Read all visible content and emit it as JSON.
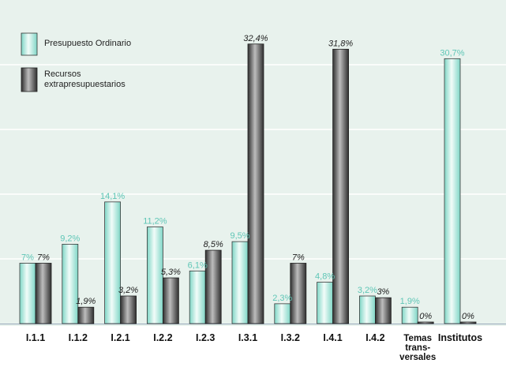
{
  "chart_data": {
    "type": "bar",
    "categories": [
      "I.1.1",
      "I.1.2",
      "I.2.1",
      "I.2.2",
      "I.2.3",
      "I.3.1",
      "I.3.2",
      "I.4.1",
      "I.4.2",
      "Temas trans- versales",
      "Institutos"
    ],
    "category_lines": [
      [
        "I.1.1"
      ],
      [
        "I.1.2"
      ],
      [
        "I.2.1"
      ],
      [
        "I.2.2"
      ],
      [
        "I.2.3"
      ],
      [
        "I.3.1"
      ],
      [
        "I.3.2"
      ],
      [
        "I.4.1"
      ],
      [
        "I.4.2"
      ],
      [
        "Temas",
        "trans-",
        "versales"
      ],
      [
        "Institutos"
      ]
    ],
    "series": [
      {
        "name": "Presupuesto Ordinario",
        "values": [
          7,
          9.2,
          14.1,
          11.2,
          6.1,
          9.5,
          2.3,
          4.8,
          3.2,
          1.9,
          30.7
        ],
        "labels": [
          "7%",
          "9,2%",
          "14,1%",
          "11,2%",
          "6,1%",
          "9,5%",
          "2,3%",
          "4,8%",
          "3,2%",
          "1,9%",
          "30,7%"
        ],
        "color": "#8fdccd"
      },
      {
        "name": "Recursos extrapresupuestarios",
        "values": [
          7,
          1.9,
          3.2,
          5.3,
          8.5,
          32.4,
          7,
          31.8,
          3,
          0,
          0
        ],
        "labels": [
          "7%",
          "1,9%",
          "3,2%",
          "5,3%",
          "8,5%",
          "32,4%",
          "7%",
          "31,8%",
          "3%",
          "0%",
          "0%"
        ],
        "color": "#555555"
      }
    ],
    "ylim": [
      0,
      37.5
    ],
    "grid": true,
    "legend_position": "top-left",
    "title": "",
    "xlabel": "",
    "ylabel": ""
  },
  "legend": {
    "item1": "Presupuesto Ordinario",
    "item2_line1": "Recursos",
    "item2_line2": "extrapresupuestarios"
  }
}
